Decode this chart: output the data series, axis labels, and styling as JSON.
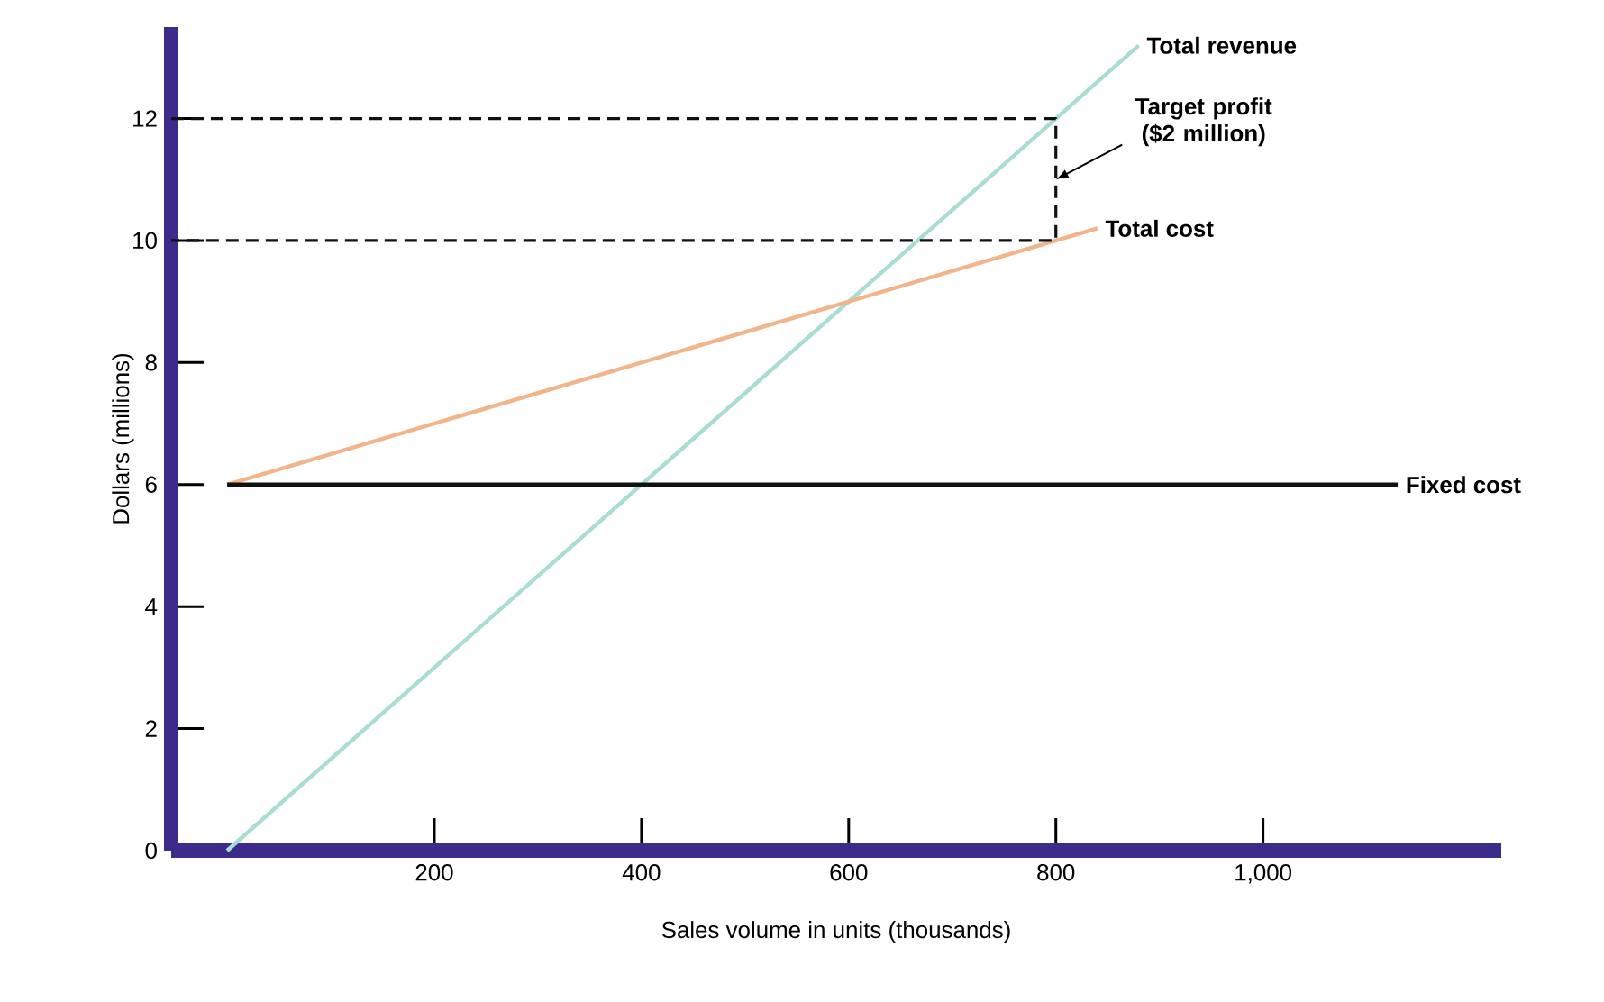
{
  "chart_data": {
    "type": "line",
    "xlabel": "Sales volume in units (thousands)",
    "ylabel": "Dollars (millions)",
    "xlim": [
      -54,
      1230
    ],
    "ylim": [
      0,
      13.5
    ],
    "xticks": [
      200,
      400,
      600,
      800,
      {
        "value": 1000,
        "label": "1,000"
      }
    ],
    "yticks": [
      0,
      2,
      4,
      6,
      8,
      10,
      12
    ],
    "series": [
      {
        "name": "Total revenue",
        "color": "#a9ddd3",
        "x": [
          0,
          880
        ],
        "values": [
          0,
          13.2
        ]
      },
      {
        "name": "Total cost",
        "color": "#f2b48a",
        "x": [
          0,
          840
        ],
        "values": [
          6,
          10.2
        ]
      },
      {
        "name": "Fixed cost",
        "color": "#111111",
        "x": [
          0,
          1130
        ],
        "values": [
          6,
          6
        ]
      },
      {
        "color": "#111111",
        "line_style": "dashed",
        "x": [
          -54,
          800,
          800,
          -54
        ],
        "values": [
          12,
          12,
          10,
          10
        ]
      }
    ],
    "annotations": [
      {
        "text": "Target profit ($2 million)",
        "x": 800,
        "y": 11
      }
    ]
  }
}
